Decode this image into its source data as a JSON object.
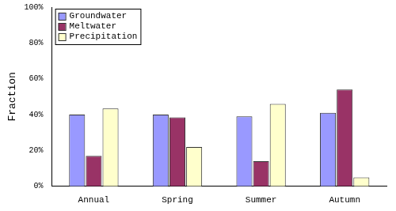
{
  "chart_data": {
    "type": "bar",
    "y_label": "Fraction",
    "categories": [
      "Annual",
      "Spring",
      "Summer",
      "Autumn"
    ],
    "series": [
      {
        "name": "Groundwater",
        "color": "#9999ff",
        "values": [
          40,
          40,
          39,
          41
        ]
      },
      {
        "name": "Meltwater",
        "color": "#993366",
        "values": [
          17,
          38.5,
          14,
          54
        ]
      },
      {
        "name": "Precipitation",
        "color": "#ffffcc",
        "values": [
          43.5,
          22,
          46,
          5
        ]
      }
    ],
    "ylim": [
      0,
      100
    ],
    "yticks": [
      {
        "value": 0,
        "label": "0%"
      },
      {
        "value": 20,
        "label": "20%"
      },
      {
        "value": 40,
        "label": "40%"
      },
      {
        "value": 60,
        "label": "60%"
      },
      {
        "value": 80,
        "label": "80%"
      },
      {
        "value": 100,
        "label": "100%"
      }
    ],
    "grid": false,
    "legend": "upper left"
  }
}
